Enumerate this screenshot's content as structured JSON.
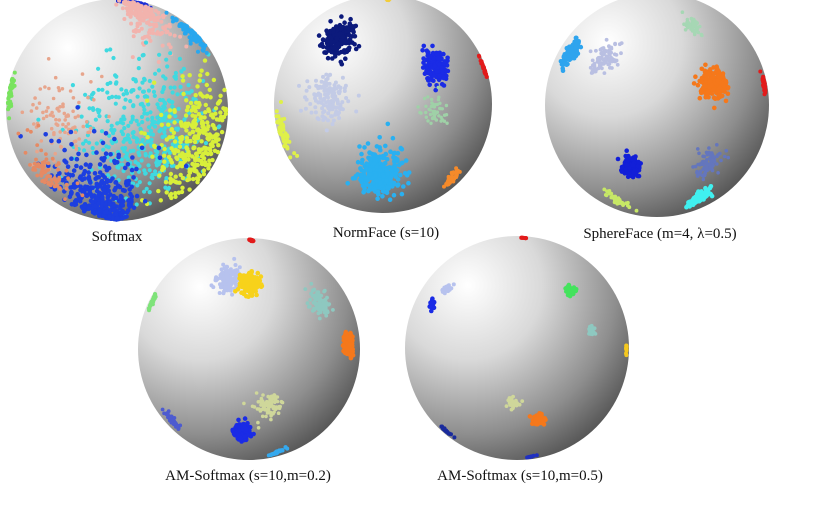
{
  "figure": {
    "panels": [
      {
        "id": "softmax",
        "caption": "Softmax",
        "clusters": [
          {
            "color": "#1d2fd6",
            "theta": 0.95,
            "phi": -1.55,
            "spread": 0.16,
            "n": 220,
            "size": 2.3
          },
          {
            "color": "#f2b3ad",
            "theta": 0.55,
            "phi": -1.05,
            "spread": 0.2,
            "n": 180,
            "size": 2.0
          },
          {
            "color": "#3fd9e0",
            "theta": 0.3,
            "phi": 0.2,
            "spread": 0.35,
            "n": 420,
            "size": 2.1
          },
          {
            "color": "#e7a58c",
            "theta": -0.55,
            "phi": 0.05,
            "spread": 0.18,
            "n": 90,
            "size": 1.8
          },
          {
            "color": "#d8ef3a",
            "theta": 0.9,
            "phi": 0.3,
            "spread": 0.28,
            "n": 300,
            "size": 2.2
          },
          {
            "color": "#1c3fe0",
            "theta": -0.25,
            "phi": 0.95,
            "spread": 0.3,
            "n": 380,
            "size": 2.3
          },
          {
            "color": "#e58a64",
            "theta": -0.9,
            "phi": 0.6,
            "spread": 0.15,
            "n": 80,
            "size": 1.9
          },
          {
            "color": "#28a7ee",
            "theta": 1.3,
            "phi": -0.75,
            "spread": 0.12,
            "n": 90,
            "size": 2.0
          },
          {
            "color": "#79e35f",
            "theta": -1.45,
            "phi": -0.15,
            "spread": 0.08,
            "n": 40,
            "size": 2.0
          }
        ]
      },
      {
        "id": "normface",
        "caption": "NormFace (s=10)",
        "clusters": [
          {
            "color": "#0c1a7c",
            "theta": -0.55,
            "phi": -0.65,
            "spread": 0.1,
            "n": 230,
            "size": 2.3
          },
          {
            "color": "#c3cbe6",
            "theta": -0.55,
            "phi": -0.05,
            "spread": 0.12,
            "n": 140,
            "size": 2.0
          },
          {
            "color": "#1a2be6",
            "theta": 0.55,
            "phi": -0.35,
            "spread": 0.07,
            "n": 170,
            "size": 2.3
          },
          {
            "color": "#9fd1a7",
            "theta": 0.5,
            "phi": 0.05,
            "spread": 0.07,
            "n": 50,
            "size": 1.7
          },
          {
            "color": "#29b0f1",
            "theta": -0.05,
            "phi": 0.7,
            "spread": 0.14,
            "n": 300,
            "size": 2.3
          },
          {
            "color": "#dff04a",
            "theta": -1.35,
            "phi": 0.25,
            "spread": 0.1,
            "n": 60,
            "size": 2.0
          },
          {
            "color": "#f58a2a",
            "theta": 1.1,
            "phi": 0.75,
            "spread": 0.06,
            "n": 40,
            "size": 2.0
          },
          {
            "color": "#f2cd3a",
            "theta": 0.2,
            "phi": -1.45,
            "spread": 0.07,
            "n": 40,
            "size": 1.8
          },
          {
            "color": "#e21b1b",
            "theta": 1.5,
            "phi": -0.35,
            "spread": 0.05,
            "n": 30,
            "size": 2.0
          }
        ]
      },
      {
        "id": "sphereface",
        "caption": "SphereFace (m=4, λ=0.5)",
        "clusters": [
          {
            "color": "#f5c81f",
            "theta": 0.15,
            "phi": -1.48,
            "spread": 0.05,
            "n": 50,
            "size": 2.2
          },
          {
            "color": "#2ea4ee",
            "theta": -1.1,
            "phi": -0.5,
            "spread": 0.07,
            "n": 110,
            "size": 2.3
          },
          {
            "color": "#b9bfe2",
            "theta": -0.55,
            "phi": -0.45,
            "spread": 0.08,
            "n": 90,
            "size": 1.9
          },
          {
            "color": "#a6d7b4",
            "theta": 0.5,
            "phi": -0.8,
            "spread": 0.06,
            "n": 50,
            "size": 1.8
          },
          {
            "color": "#f5781b",
            "theta": 0.55,
            "phi": -0.2,
            "spread": 0.07,
            "n": 200,
            "size": 2.3
          },
          {
            "color": "#e21b1b",
            "theta": 1.42,
            "phi": -0.2,
            "spread": 0.04,
            "n": 35,
            "size": 2.0
          },
          {
            "color": "#121fd8",
            "theta": -0.3,
            "phi": 0.6,
            "spread": 0.05,
            "n": 140,
            "size": 2.3
          },
          {
            "color": "#6476bd",
            "theta": 0.6,
            "phi": 0.55,
            "spread": 0.08,
            "n": 80,
            "size": 1.8
          },
          {
            "color": "#40f0f0",
            "theta": 0.8,
            "phi": 1.0,
            "spread": 0.07,
            "n": 150,
            "size": 2.3
          },
          {
            "color": "#c7e866",
            "theta": -0.8,
            "phi": 1.05,
            "spread": 0.07,
            "n": 50,
            "size": 1.9
          }
        ]
      },
      {
        "id": "am-softmax-02",
        "caption": "AM-Softmax (s=10,m=0.2)",
        "clusters": [
          {
            "color": "#e21b1b",
            "theta": 0.2,
            "phi": -1.48,
            "spread": 0.04,
            "n": 35,
            "size": 2.2
          },
          {
            "color": "#b7c2ee",
            "theta": -0.25,
            "phi": -0.7,
            "spread": 0.08,
            "n": 140,
            "size": 2.0
          },
          {
            "color": "#f7d21b",
            "theta": 0.0,
            "phi": -0.65,
            "spread": 0.06,
            "n": 180,
            "size": 2.3
          },
          {
            "color": "#7fe37a",
            "theta": -1.38,
            "phi": -0.45,
            "spread": 0.04,
            "n": 30,
            "size": 2.0
          },
          {
            "color": "#8ec8c0",
            "theta": 0.8,
            "phi": -0.45,
            "spread": 0.07,
            "n": 80,
            "size": 1.9
          },
          {
            "color": "#f5781b",
            "theta": 1.15,
            "phi": -0.05,
            "spread": 0.05,
            "n": 120,
            "size": 2.3
          },
          {
            "color": "#cfd79a",
            "theta": 0.2,
            "phi": 0.55,
            "spread": 0.08,
            "n": 80,
            "size": 1.8
          },
          {
            "color": "#1a2be6",
            "theta": -0.1,
            "phi": 0.85,
            "spread": 0.06,
            "n": 150,
            "size": 2.3
          },
          {
            "color": "#4d5bd0",
            "theta": -1.2,
            "phi": 0.7,
            "spread": 0.06,
            "n": 50,
            "size": 1.9
          },
          {
            "color": "#35a9ee",
            "theta": 0.9,
            "phi": 1.25,
            "spread": 0.05,
            "n": 40,
            "size": 2.0
          }
        ]
      },
      {
        "id": "am-softmax-05",
        "caption": "AM-Softmax (s=10,m=0.5)",
        "clusters": [
          {
            "color": "#e21b1b",
            "theta": 1.1,
            "phi": -1.5,
            "spread": 0.02,
            "n": 12,
            "size": 2.0
          },
          {
            "color": "#b7c2ee",
            "theta": -0.85,
            "phi": -0.55,
            "spread": 0.03,
            "n": 25,
            "size": 2.0
          },
          {
            "color": "#1a2be6",
            "theta": -1.0,
            "phi": -0.42,
            "spread": 0.03,
            "n": 20,
            "size": 2.3
          },
          {
            "color": "#44e35d",
            "theta": 0.6,
            "phi": -0.55,
            "spread": 0.03,
            "n": 45,
            "size": 2.2
          },
          {
            "color": "#8ec8c0",
            "theta": 0.75,
            "phi": -0.15,
            "spread": 0.025,
            "n": 30,
            "size": 1.9
          },
          {
            "color": "#f5c81f",
            "theta": 1.45,
            "phi": 0.0,
            "spread": 0.02,
            "n": 15,
            "size": 2.0
          },
          {
            "color": "#cfd79a",
            "theta": -0.05,
            "phi": 0.52,
            "spread": 0.04,
            "n": 30,
            "size": 1.9
          },
          {
            "color": "#f5781b",
            "theta": 0.25,
            "phi": 0.7,
            "spread": 0.035,
            "n": 60,
            "size": 2.3
          },
          {
            "color": "#1a2b9c",
            "theta": -1.35,
            "phi": 0.85,
            "spread": 0.03,
            "n": 25,
            "size": 2.0
          },
          {
            "color": "#2030c0",
            "theta": 0.8,
            "phi": 1.4,
            "spread": 0.03,
            "n": 12,
            "size": 2.0
          }
        ]
      }
    ]
  }
}
